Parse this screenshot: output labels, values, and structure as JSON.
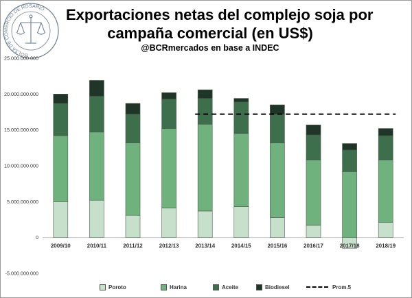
{
  "header": {
    "title_line1": "Exportaciones netas del complejo soja por",
    "title_line2": "campaña comercial (en US$)",
    "subtitle": "@BCRmercados en base a INDEC",
    "logo_text": "BOLSA DE COMERCIO DE ROSARIO"
  },
  "chart_data": {
    "type": "bar",
    "stacked": true,
    "title": "Exportaciones netas del complejo soja por campaña comercial (en US$)",
    "subtitle": "@BCRmercados en base a INDEC",
    "categories": [
      "2009/10",
      "2010/11",
      "2011/12",
      "2012/13",
      "2013/14",
      "2014/15",
      "2015/16",
      "2016/17",
      "2017/18",
      "2018/19"
    ],
    "series": [
      {
        "name": "Poroto",
        "color": "#c6e0cb",
        "values": [
          5000000000,
          5200000000,
          3100000000,
          4100000000,
          3700000000,
          4300000000,
          2800000000,
          1700000000,
          -1500000000,
          2100000000
        ]
      },
      {
        "name": "Harina",
        "color": "#6fb27d",
        "values": [
          9200000000,
          9500000000,
          10100000000,
          11100000000,
          12100000000,
          10200000000,
          10400000000,
          9100000000,
          9200000000,
          8700000000
        ]
      },
      {
        "name": "Aceite",
        "color": "#3e6f4c",
        "values": [
          4500000000,
          5000000000,
          4000000000,
          4100000000,
          3600000000,
          4400000000,
          4000000000,
          3500000000,
          3000000000,
          3400000000
        ]
      },
      {
        "name": "Biodiesel",
        "color": "#1e3527",
        "values": [
          1300000000,
          2200000000,
          1500000000,
          900000000,
          1200000000,
          500000000,
          1300000000,
          1400000000,
          900000000,
          1000000000
        ]
      }
    ],
    "reference_line": {
      "name": "Prom.5",
      "value": 17200000000,
      "from_category": "2013/14",
      "to_category": "2018/19",
      "style": "dashed",
      "color": "#000000"
    },
    "y_ticks": [
      -5000000000,
      0,
      5000000000,
      10000000000,
      15000000000,
      20000000000,
      25000000000
    ],
    "y_tick_labels": [
      "-5.000.000.000",
      "0",
      "5.000.000.000",
      "10.000.000.000",
      "15.000.000.000",
      "20.000.000.000",
      "25.000.000.000"
    ],
    "ylim": [
      -5000000000,
      25000000000
    ],
    "xlabel": "",
    "ylabel": "",
    "grid": false,
    "legend_position": "bottom"
  }
}
